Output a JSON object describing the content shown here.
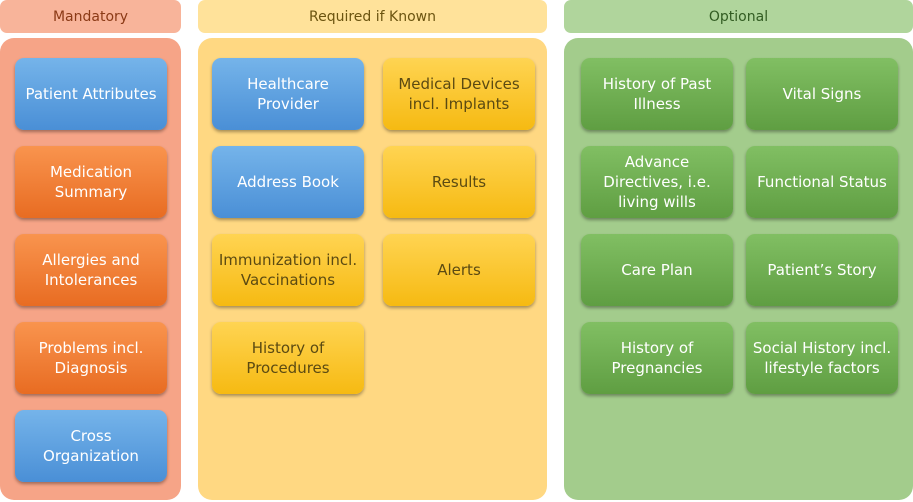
{
  "columns": {
    "mandatory": {
      "title": "Mandatory",
      "items": [
        "Patient Attributes",
        "Medication Summary",
        "Allergies and Intolerances",
        "Problems incl. Diagnosis",
        "Cross Organization"
      ]
    },
    "required": {
      "title": "Required if Known",
      "items": [
        "Healthcare Provider",
        "Medical Devices incl. Implants",
        "Address Book",
        "Results",
        "Immunization incl. Vaccinations",
        "Alerts",
        "History of Procedures"
      ]
    },
    "optional": {
      "title": "Optional",
      "items": [
        "History of Past Illness",
        "Vital Signs",
        "Advance Directives, i.e. living wills",
        "Functional Status",
        "Care Plan",
        "Patient’s Story",
        "History of Pregnancies",
        "Social History incl. lifestyle factors"
      ]
    }
  },
  "colors": {
    "mandatory_header": "#f8b49a",
    "mandatory_panel": "#f6a487",
    "required_header": "#ffe29a",
    "required_panel": "#ffd882",
    "optional_header": "#b0d59c",
    "optional_panel": "#a3cc8c",
    "blue_box": "#5b9bdf",
    "orange_box": "#ee7b32",
    "yellow_box": "#fbc52a",
    "green_box": "#6aab4c"
  }
}
